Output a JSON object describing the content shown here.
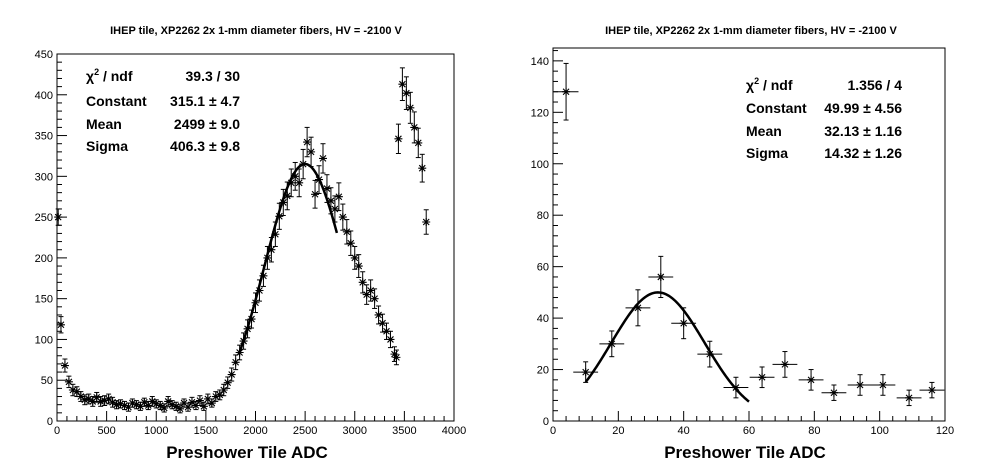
{
  "chart_data": [
    {
      "type": "scatter",
      "title": "IHEP tile, XP2262 2x 1-mm diameter fibers, HV = -2100 V",
      "xlabel": "Preshower Tile ADC",
      "ylabel": "",
      "xlim": [
        0,
        4000
      ],
      "ylim": [
        0,
        450
      ],
      "xticks": [
        "0",
        "500",
        "1000",
        "1500",
        "2000",
        "2500",
        "3000",
        "3500",
        "4000"
      ],
      "yticks": [
        "0",
        "50",
        "100",
        "150",
        "200",
        "250",
        "300",
        "350",
        "400",
        "450"
      ],
      "stats": {
        "chi2_label": "χ² / ndf",
        "chi2_value": "39.3 / 30",
        "constant_label": "Constant",
        "constant_value": "315.1 ± 4.7",
        "mean_label": "Mean",
        "mean_value": "2499 ± 9.0",
        "sigma_label": "Sigma",
        "sigma_value": "406.3 ± 9.8"
      },
      "fit": {
        "function": "gaus",
        "constant": 315.1,
        "mean": 2499,
        "sigma": 406.3,
        "xrange": [
          1830,
          2820
        ]
      },
      "points": [
        [
          12,
          250,
          10
        ],
        [
          40,
          118,
          10
        ],
        [
          80,
          68,
          8
        ],
        [
          120,
          48,
          7
        ],
        [
          160,
          38,
          7
        ],
        [
          200,
          36,
          6
        ],
        [
          240,
          30,
          6
        ],
        [
          280,
          26,
          6
        ],
        [
          320,
          27,
          6
        ],
        [
          360,
          24,
          6
        ],
        [
          400,
          29,
          6
        ],
        [
          440,
          24,
          6
        ],
        [
          480,
          25,
          6
        ],
        [
          520,
          27,
          6
        ],
        [
          560,
          23,
          6
        ],
        [
          600,
          20,
          5
        ],
        [
          640,
          21,
          5
        ],
        [
          680,
          19,
          5
        ],
        [
          720,
          17,
          5
        ],
        [
          760,
          22,
          5
        ],
        [
          800,
          20,
          5
        ],
        [
          840,
          18,
          5
        ],
        [
          880,
          23,
          5
        ],
        [
          920,
          19,
          5
        ],
        [
          960,
          24,
          6
        ],
        [
          1000,
          21,
          5
        ],
        [
          1040,
          19,
          5
        ],
        [
          1080,
          16,
          5
        ],
        [
          1120,
          24,
          6
        ],
        [
          1160,
          20,
          5
        ],
        [
          1200,
          18,
          5
        ],
        [
          1240,
          15,
          5
        ],
        [
          1280,
          22,
          5
        ],
        [
          1320,
          17,
          5
        ],
        [
          1360,
          23,
          6
        ],
        [
          1400,
          19,
          5
        ],
        [
          1440,
          25,
          6
        ],
        [
          1480,
          18,
          5
        ],
        [
          1520,
          27,
          6
        ],
        [
          1560,
          22,
          5
        ],
        [
          1600,
          30,
          6
        ],
        [
          1640,
          32,
          6
        ],
        [
          1680,
          38,
          7
        ],
        [
          1720,
          47,
          7
        ],
        [
          1760,
          57,
          8
        ],
        [
          1800,
          72,
          9
        ],
        [
          1840,
          84,
          9
        ],
        [
          1880,
          98,
          10
        ],
        [
          1920,
          113,
          11
        ],
        [
          1960,
          125,
          11
        ],
        [
          2000,
          145,
          12
        ],
        [
          2040,
          160,
          13
        ],
        [
          2080,
          178,
          13
        ],
        [
          2120,
          200,
          14
        ],
        [
          2160,
          210,
          15
        ],
        [
          2200,
          229,
          15
        ],
        [
          2240,
          251,
          16
        ],
        [
          2280,
          268,
          16
        ],
        [
          2320,
          276,
          17
        ],
        [
          2360,
          292,
          17
        ],
        [
          2400,
          300,
          17
        ],
        [
          2440,
          292,
          17
        ],
        [
          2480,
          315,
          18
        ],
        [
          2520,
          342,
          18
        ],
        [
          2560,
          330,
          18
        ],
        [
          2600,
          278,
          17
        ],
        [
          2640,
          296,
          17
        ],
        [
          2680,
          322,
          18
        ],
        [
          2720,
          285,
          17
        ],
        [
          2760,
          270,
          16
        ],
        [
          2800,
          260,
          16
        ],
        [
          2840,
          275,
          17
        ],
        [
          2880,
          250,
          16
        ],
        [
          2920,
          232,
          15
        ],
        [
          2960,
          218,
          15
        ],
        [
          3000,
          200,
          14
        ],
        [
          3040,
          190,
          14
        ],
        [
          3080,
          170,
          13
        ],
        [
          3120,
          155,
          12
        ],
        [
          3160,
          160,
          13
        ],
        [
          3200,
          150,
          12
        ],
        [
          3240,
          130,
          11
        ],
        [
          3280,
          120,
          11
        ],
        [
          3320,
          110,
          10
        ],
        [
          3360,
          100,
          10
        ],
        [
          3400,
          82,
          9
        ],
        [
          3420,
          78,
          9
        ],
        [
          3440,
          346,
          18
        ],
        [
          3480,
          413,
          20
        ],
        [
          3520,
          402,
          20
        ],
        [
          3560,
          384,
          19
        ],
        [
          3600,
          360,
          19
        ],
        [
          3640,
          341,
          18
        ],
        [
          3680,
          310,
          17
        ],
        [
          3720,
          244,
          15
        ]
      ]
    },
    {
      "type": "scatter",
      "title": "IHEP tile, XP2262 2x 1-mm diameter fibers, HV = -2100 V",
      "xlabel": "Preshower Tile ADC",
      "ylabel": "",
      "xlim": [
        0,
        120
      ],
      "ylim": [
        0,
        145
      ],
      "xticks": [
        "0",
        "20",
        "40",
        "60",
        "80",
        "100",
        "120"
      ],
      "yticks": [
        "0",
        "20",
        "40",
        "60",
        "80",
        "100",
        "120",
        "140"
      ],
      "stats": {
        "chi2_label": "χ² / ndf",
        "chi2_value": "1.356 / 4",
        "constant_label": "Constant",
        "constant_value": "49.99 ± 4.56",
        "mean_label": "Mean",
        "mean_value": "32.13 ± 1.16",
        "sigma_label": "Sigma",
        "sigma_value": "14.32 ± 1.26"
      },
      "fit": {
        "function": "gaus",
        "constant": 49.99,
        "mean": 32.13,
        "sigma": 14.32,
        "xrange": [
          10,
          60
        ]
      },
      "points": [
        [
          4,
          128,
          11,
          3.8
        ],
        [
          10,
          19,
          4,
          3.8
        ],
        [
          18,
          30,
          5,
          3.8
        ],
        [
          26,
          44,
          7,
          3.8
        ],
        [
          33,
          56,
          8,
          3.8
        ],
        [
          40,
          38,
          6,
          3.8
        ],
        [
          48,
          26,
          5,
          3.8
        ],
        [
          56,
          13,
          4,
          3.8
        ],
        [
          64,
          17,
          4,
          3.8
        ],
        [
          71,
          22,
          5,
          3.8
        ],
        [
          79,
          16,
          4,
          3.8
        ],
        [
          86,
          11,
          3,
          3.8
        ],
        [
          94,
          14,
          4,
          3.8
        ],
        [
          101,
          14,
          4,
          3.8
        ],
        [
          109,
          9,
          3,
          3.8
        ],
        [
          116,
          12,
          3,
          3.8
        ]
      ]
    }
  ]
}
